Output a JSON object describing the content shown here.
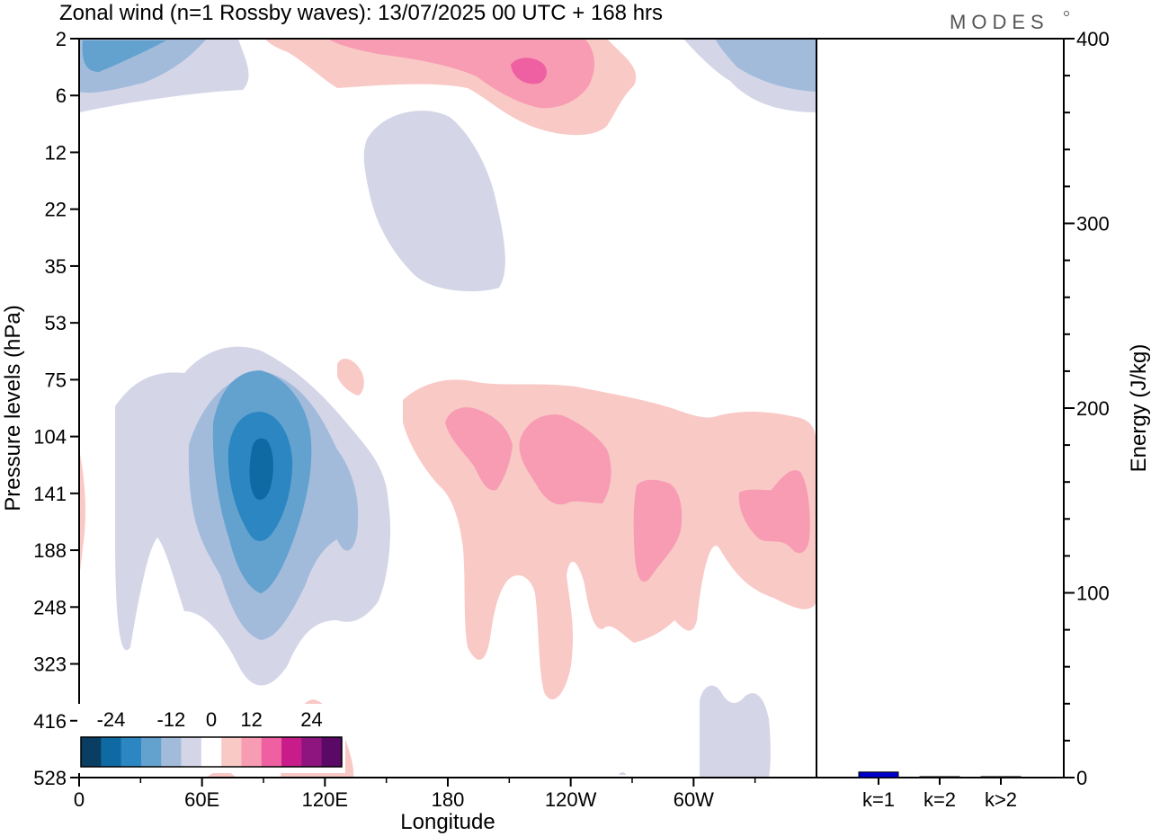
{
  "header": {
    "title": "Zonal wind (n=1 Rossby waves):  13/07/2025  00 UTC  + 168 hrs",
    "brand": "MODES"
  },
  "chart_data": [
    {
      "type": "heatmap",
      "title": "Zonal wind (n=1 Rossby waves):  13/07/2025  00 UTC  + 168 hrs",
      "xlabel": "Longitude",
      "ylabel": "Pressure levels (hPa)",
      "x_ticks": [
        "0",
        "60E",
        "120E",
        "180",
        "120W",
        "60W"
      ],
      "y_ticks": [
        "2",
        "6",
        "12",
        "22",
        "35",
        "53",
        "75",
        "104",
        "141",
        "188",
        "248",
        "323",
        "416",
        "528"
      ],
      "colorbar": {
        "tick_labels": [
          "-24",
          "-12",
          "0",
          "12",
          "24"
        ],
        "levels": [
          -30,
          -25,
          -20,
          -15,
          -10,
          -5,
          5,
          10,
          15,
          20,
          25,
          30
        ],
        "colors": [
          "#0a3d62",
          "#0f6aa3",
          "#2b86c2",
          "#63a2cf",
          "#a3bbdb",
          "#d4d6e8",
          "#ffffff",
          "#f9c9c6",
          "#f79cb3",
          "#ee60a2",
          "#c81c8a",
          "#8e1480",
          "#5a0a66"
        ]
      },
      "features": [
        {
          "sign": "negative",
          "peak": -25,
          "lon": 88,
          "level": "115"
        },
        {
          "sign": "negative",
          "peak": -12,
          "lon": 10,
          "level": "2"
        },
        {
          "sign": "negative",
          "peak": -10,
          "lon": 315,
          "level": "2"
        },
        {
          "sign": "negative",
          "peak": -5,
          "lon": 165,
          "level": "22"
        },
        {
          "sign": "negative",
          "peak": -5,
          "lon": 310,
          "level": "500"
        },
        {
          "sign": "positive",
          "peak": 15,
          "lon": 220,
          "level": "3"
        },
        {
          "sign": "positive",
          "peak": 10,
          "lon": 195,
          "level": "110"
        },
        {
          "sign": "positive",
          "peak": 10,
          "lon": 240,
          "level": "115"
        },
        {
          "sign": "positive",
          "peak": 10,
          "lon": 282,
          "level": "160"
        },
        {
          "sign": "positive",
          "peak": 10,
          "lon": 332,
          "level": "150"
        },
        {
          "sign": "positive",
          "peak": 5,
          "lon": 120,
          "level": "480"
        }
      ]
    },
    {
      "type": "bar",
      "categories": [
        "k=1",
        "k=2",
        "k>2"
      ],
      "values": [
        3,
        0.5,
        0.5
      ],
      "ylabel": "Energy (J/kg)",
      "ylim": [
        0,
        400
      ],
      "y_ticks": [
        "0",
        "100",
        "200",
        "300",
        "400"
      ],
      "colors": [
        "#0000cc",
        "#000080",
        "#000080"
      ]
    }
  ]
}
